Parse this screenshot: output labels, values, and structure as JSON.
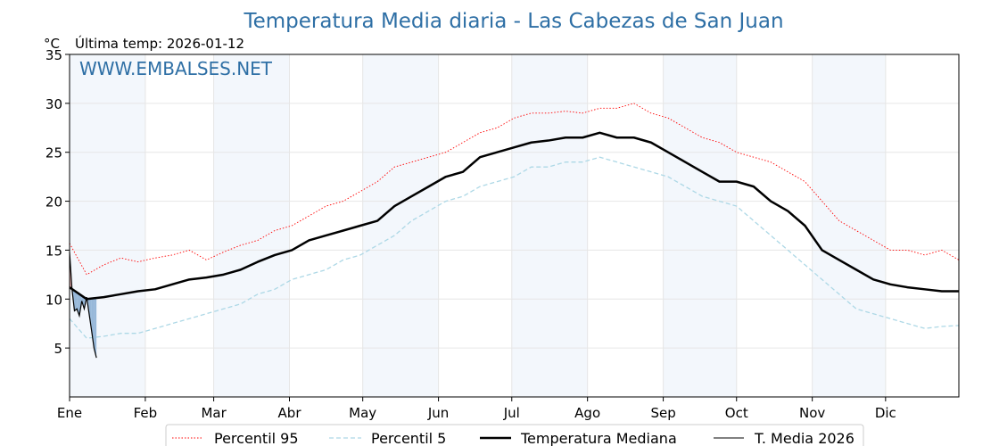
{
  "chart_data": {
    "type": "line",
    "title": "Temperatura Media diaria - Las Cabezas de San Juan",
    "unit_label": "°C",
    "last_temp_label": "Última temp: 2026-01-12",
    "watermark": "WWW.EMBALSES.NET",
    "ylim": [
      0,
      35
    ],
    "yticks": [
      5,
      10,
      15,
      20,
      25,
      30,
      35
    ],
    "xlim": [
      1,
      365
    ],
    "months": [
      {
        "label": "Ene",
        "day": 1
      },
      {
        "label": "Feb",
        "day": 32
      },
      {
        "label": "Mar",
        "day": 60
      },
      {
        "label": "Abr",
        "day": 91
      },
      {
        "label": "May",
        "day": 121
      },
      {
        "label": "Jun",
        "day": 152
      },
      {
        "label": "Jul",
        "day": 182
      },
      {
        "label": "Ago",
        "day": 213
      },
      {
        "label": "Sep",
        "day": 244
      },
      {
        "label": "Oct",
        "day": 274
      },
      {
        "label": "Nov",
        "day": 305
      },
      {
        "label": "Dic",
        "day": 335
      }
    ],
    "grid": true,
    "legend_position": "bottom",
    "series": [
      {
        "name": "Percentil 95",
        "style": "dotted",
        "color": "#ff0000",
        "x": [
          1,
          8,
          15,
          22,
          29,
          36,
          43,
          50,
          57,
          64,
          71,
          78,
          85,
          92,
          99,
          106,
          113,
          120,
          127,
          134,
          141,
          148,
          155,
          162,
          169,
          176,
          183,
          190,
          197,
          204,
          211,
          218,
          225,
          232,
          239,
          246,
          253,
          260,
          267,
          274,
          281,
          288,
          295,
          302,
          309,
          316,
          323,
          330,
          337,
          344,
          351,
          358,
          365
        ],
        "values": [
          15.7,
          12.5,
          13.5,
          14.2,
          13.8,
          14.2,
          14.5,
          15.0,
          14.0,
          14.8,
          15.5,
          16.0,
          17.0,
          17.5,
          18.5,
          19.5,
          20.0,
          21.0,
          22.0,
          23.5,
          24.0,
          24.5,
          25.0,
          26.0,
          27.0,
          27.5,
          28.5,
          29.0,
          29.0,
          29.2,
          29.0,
          29.5,
          29.5,
          30.0,
          29.0,
          28.5,
          27.5,
          26.5,
          26.0,
          25.0,
          24.5,
          24.0,
          23.0,
          22.0,
          20.0,
          18.0,
          17.0,
          16.0,
          15.0,
          15.0,
          14.5,
          15.0,
          14.0
        ]
      },
      {
        "name": "Percentil 5",
        "style": "dashed",
        "color": "#add8e6",
        "x": [
          1,
          8,
          15,
          22,
          29,
          36,
          43,
          50,
          57,
          64,
          71,
          78,
          85,
          92,
          99,
          106,
          113,
          120,
          127,
          134,
          141,
          148,
          155,
          162,
          169,
          176,
          183,
          190,
          197,
          204,
          211,
          218,
          225,
          232,
          239,
          246,
          253,
          260,
          267,
          274,
          281,
          288,
          295,
          302,
          309,
          316,
          323,
          330,
          337,
          344,
          351,
          358,
          365
        ],
        "values": [
          8.0,
          6.0,
          6.2,
          6.5,
          6.5,
          7.0,
          7.5,
          8.0,
          8.5,
          9.0,
          9.5,
          10.5,
          11.0,
          12.0,
          12.5,
          13.0,
          14.0,
          14.5,
          15.5,
          16.5,
          18.0,
          19.0,
          20.0,
          20.5,
          21.5,
          22.0,
          22.5,
          23.5,
          23.5,
          24.0,
          24.0,
          24.5,
          24.0,
          23.5,
          23.0,
          22.5,
          21.5,
          20.5,
          20.0,
          19.5,
          18.0,
          16.5,
          15.0,
          13.5,
          12.0,
          10.5,
          9.0,
          8.5,
          8.0,
          7.5,
          7.0,
          7.2,
          7.3
        ]
      },
      {
        "name": "Temperatura Mediana",
        "style": "solid-thick",
        "color": "#000000",
        "x": [
          1,
          8,
          15,
          22,
          29,
          36,
          43,
          50,
          57,
          64,
          71,
          78,
          85,
          92,
          99,
          106,
          113,
          120,
          127,
          134,
          141,
          148,
          155,
          162,
          169,
          176,
          183,
          190,
          197,
          204,
          211,
          218,
          225,
          232,
          239,
          246,
          253,
          260,
          267,
          274,
          281,
          288,
          295,
          302,
          309,
          316,
          323,
          330,
          337,
          344,
          351,
          358,
          365
        ],
        "values": [
          11.2,
          10.0,
          10.2,
          10.5,
          10.8,
          11.0,
          11.5,
          12.0,
          12.2,
          12.5,
          13.0,
          13.8,
          14.5,
          15.0,
          16.0,
          16.5,
          17.0,
          17.5,
          18.0,
          19.5,
          20.5,
          21.5,
          22.5,
          23.0,
          24.5,
          25.0,
          25.5,
          26.0,
          26.2,
          26.5,
          26.5,
          27.0,
          26.5,
          26.5,
          26.0,
          25.0,
          24.0,
          23.0,
          22.0,
          22.0,
          21.5,
          20.0,
          19.0,
          17.5,
          15.0,
          14.0,
          13.0,
          12.0,
          11.5,
          11.2,
          11.0,
          10.8,
          10.8
        ]
      },
      {
        "name": "T. Media 2026",
        "style": "solid-thin",
        "color": "#000000",
        "x": [
          1,
          2,
          3,
          4,
          5,
          6,
          7,
          8,
          9,
          10,
          11,
          12
        ],
        "values": [
          14.8,
          11.0,
          8.8,
          9.0,
          8.3,
          9.8,
          9.0,
          10.2,
          8.5,
          6.8,
          5.0,
          4.0
        ]
      }
    ]
  }
}
